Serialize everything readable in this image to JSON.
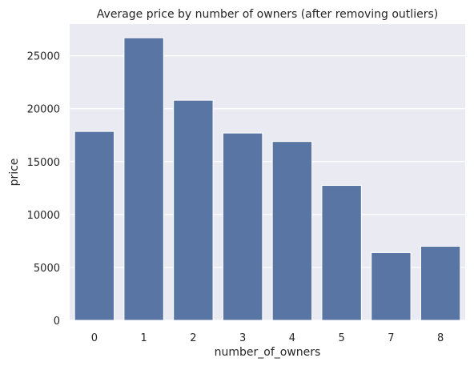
{
  "chart_data": {
    "type": "bar",
    "title": "Average price by number of owners (after removing outliers)",
    "xlabel": "number_of_owners",
    "ylabel": "price",
    "categories": [
      "0",
      "1",
      "2",
      "3",
      "4",
      "5",
      "7",
      "8"
    ],
    "values": [
      17850,
      26700,
      20800,
      17700,
      16900,
      12750,
      6400,
      7000
    ],
    "ylim": [
      0,
      28000
    ],
    "yticks": [
      "0",
      "5000",
      "10000",
      "15000",
      "20000",
      "25000"
    ],
    "ytick_values": [
      0,
      5000,
      10000,
      15000,
      20000,
      25000
    ],
    "grid": true,
    "colors": {
      "bar": "#5975a4",
      "background": "#eaeaf2",
      "grid": "#ffffff",
      "text": "#262626"
    }
  }
}
